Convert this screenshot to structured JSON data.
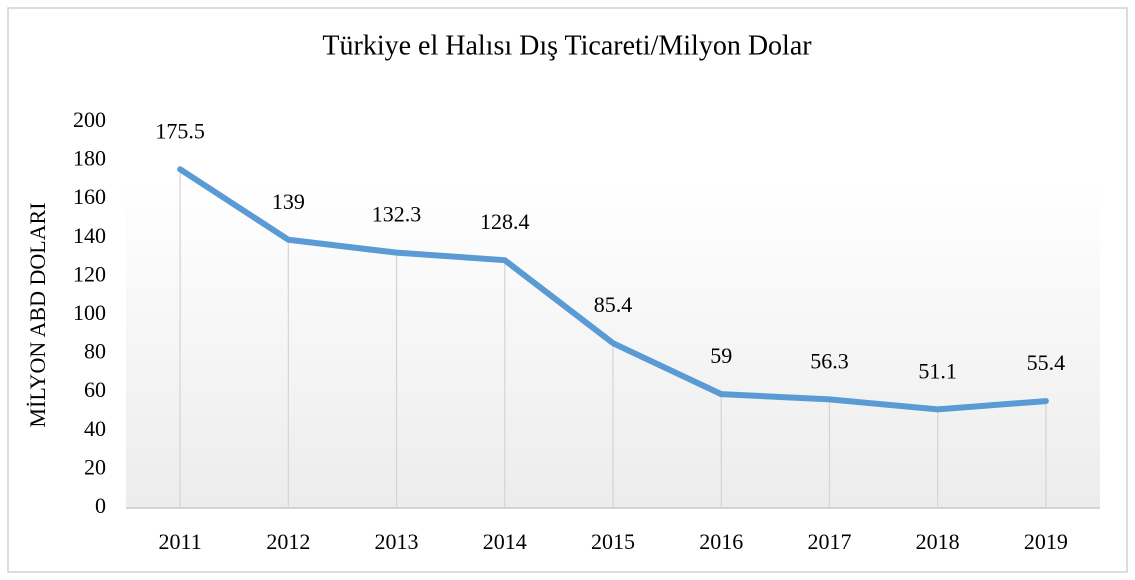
{
  "chart_data": {
    "type": "line",
    "title": "Türkiye el Halısı Dış Ticareti/Milyon Dolar",
    "y_label": "MİLYON ABD DOLARI",
    "categories": [
      "2011",
      "2012",
      "2013",
      "2014",
      "2015",
      "2016",
      "2017",
      "2018",
      "2019"
    ],
    "values": [
      175.5,
      139,
      132.3,
      128.4,
      85.4,
      59,
      56.3,
      51.1,
      55.4
    ],
    "color": "#5b9bd5",
    "ylim": [
      0,
      200
    ],
    "yticks": [
      0,
      20,
      40,
      60,
      80,
      100,
      120,
      140,
      160,
      180,
      200
    ],
    "drop_lines": true
  }
}
